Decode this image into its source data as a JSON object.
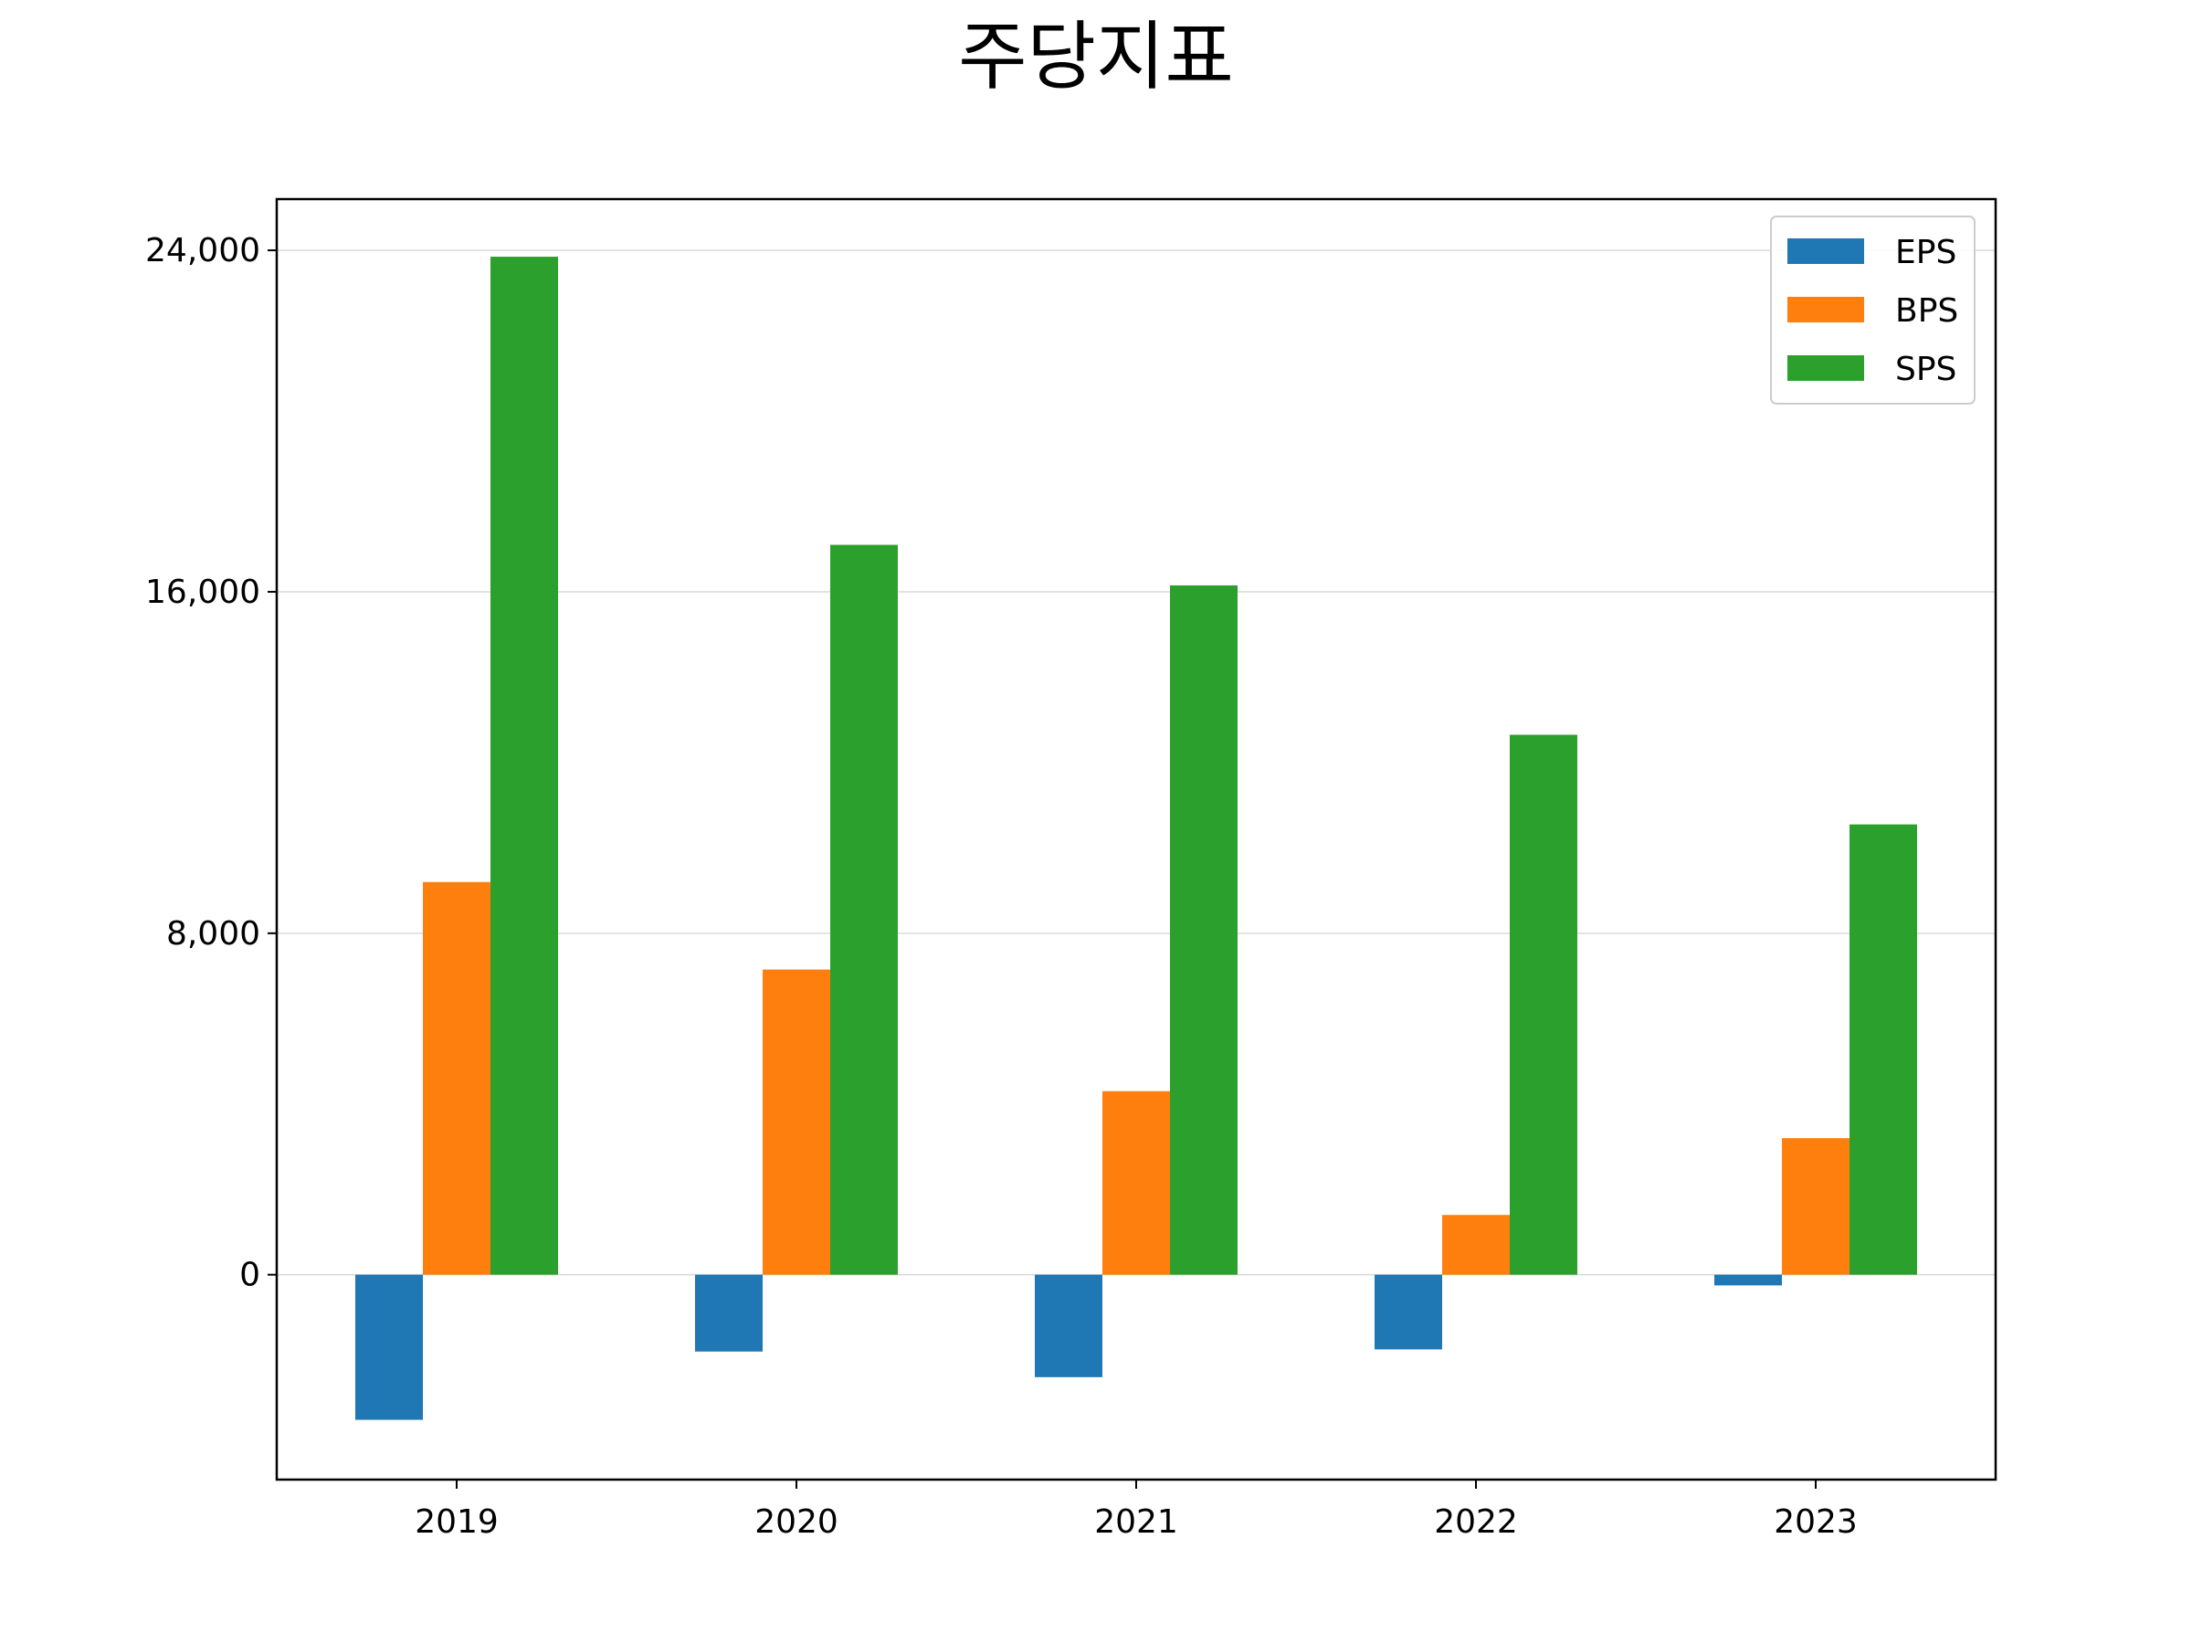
{
  "chart_data": {
    "type": "bar",
    "title": "주당지표",
    "xlabel": "",
    "ylabel": "",
    "categories": [
      "2019",
      "2020",
      "2021",
      "2022",
      "2023"
    ],
    "series": [
      {
        "name": "EPS",
        "color": "#1f77b4",
        "values": [
          -3400,
          -1800,
          -2400,
          -1750,
          -250
        ]
      },
      {
        "name": "BPS",
        "color": "#ff7f0e",
        "values": [
          9200,
          7150,
          4300,
          1400,
          3200
        ]
      },
      {
        "name": "SPS",
        "color": "#2ca02c",
        "values": [
          23850,
          17100,
          16150,
          12650,
          10550
        ]
      }
    ],
    "ylim": [
      -4800,
      25200
    ],
    "yticks": [
      0,
      8000,
      16000,
      24000
    ],
    "ytick_labels": [
      "0",
      "8,000",
      "16,000",
      "24,000"
    ],
    "grid": "horizontal",
    "legend_position": "top-right"
  }
}
